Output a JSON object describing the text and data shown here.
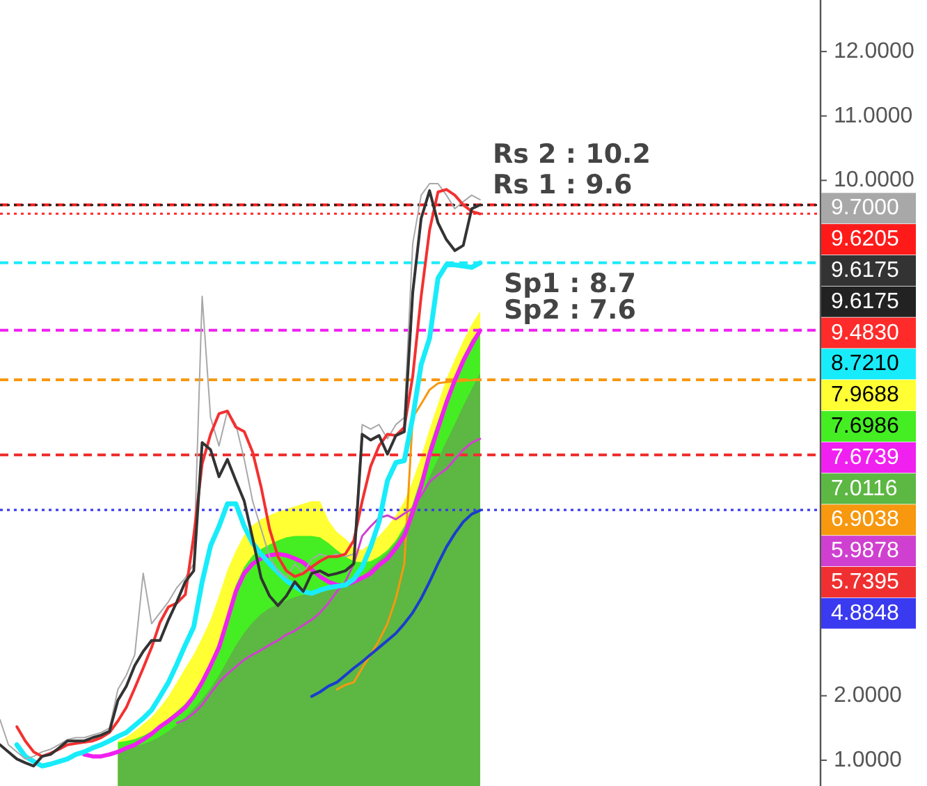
{
  "chart_data": {
    "type": "line",
    "tick_labels": "y",
    "legend": "right",
    "categories": [
      null,
      null,
      null,
      null,
      null,
      null,
      null,
      null,
      null,
      null,
      null,
      null,
      null,
      null,
      null,
      null,
      null,
      null,
      null,
      null,
      null,
      null,
      null,
      null,
      null,
      null,
      null,
      null,
      null,
      null,
      null,
      null,
      null,
      null,
      null,
      null,
      null,
      null,
      null,
      null,
      null,
      null,
      null,
      null,
      null,
      null,
      null,
      null,
      null,
      null,
      null,
      null,
      null,
      null,
      null,
      null,
      null,
      null,
      null,
      null,
      null,
      null,
      null,
      null,
      null,
      null,
      null,
      null,
      null,
      null,
      null,
      null,
      null,
      null,
      null,
      null,
      null,
      null,
      null,
      null,
      null,
      null,
      null,
      null,
      null,
      null,
      null,
      null,
      null,
      null,
      null,
      null,
      null,
      null,
      null,
      null,
      null,
      null
    ],
    "ylim": [
      0.6,
      12.8
    ],
    "yticks": [
      {
        "value": 1,
        "label": "1.0000"
      },
      {
        "value": 2,
        "label": "2.0000"
      },
      {
        "value": 10,
        "label": "10.0000"
      },
      {
        "value": 11,
        "label": "11.0000"
      },
      {
        "value": 12,
        "label": "12.0000"
      }
    ],
    "annotations": [
      "Rs 2 : 10.2",
      "Rs 1 : 9.6",
      "Sp1 : 8.7",
      "Sp2 : 7.6"
    ],
    "ref_lines": [
      {
        "axis": "y",
        "value": 9.6205,
        "label": "9.6205",
        "color": "#ff1a1a",
        "line_style": "dashed"
      },
      {
        "axis": "y",
        "value": 9.6175,
        "label": "9.6175",
        "color": "#222222",
        "line_style": "dotted"
      },
      {
        "axis": "y",
        "value": 9.483,
        "label": "9.4830",
        "color": "#ff2a2a",
        "line_style": "dotted"
      },
      {
        "axis": "y",
        "value": 8.721,
        "label": "8.7210",
        "color": "#18ecfa",
        "line_style": "dashed"
      },
      {
        "axis": "y",
        "value": 7.6739,
        "label": "7.6739",
        "color": "#f020f0",
        "line_style": "dashed"
      },
      {
        "axis": "y",
        "value": 6.9038,
        "label": "6.9038",
        "color": "#f7980f",
        "line_style": "dashed"
      },
      {
        "axis": "y",
        "value": 5.7395,
        "label": "5.7395",
        "color": "#f03030",
        "line_style": "dashed"
      },
      {
        "axis": "y",
        "value": 4.8848,
        "label": "4.8848",
        "color": "#3a3af0",
        "line_style": "dotted"
      }
    ],
    "series": [
      {
        "type": "area",
        "name": "7.9688",
        "color": "#ffff33",
        "values": [
          null,
          null,
          null,
          null,
          null,
          null,
          null,
          null,
          null,
          null,
          null,
          null,
          null,
          null,
          1.3,
          1.36,
          1.45,
          1.56,
          1.67,
          1.82,
          1.99,
          2.21,
          2.43,
          2.64,
          2.9,
          3.18,
          3.55,
          3.95,
          4.25,
          4.5,
          4.65,
          4.74,
          4.8,
          4.86,
          4.9,
          4.94,
          4.98,
          5.02,
          5.02,
          4.72,
          4.54,
          4.44,
          4.3,
          4.26,
          4.37,
          4.48,
          4.63,
          4.8,
          5.02,
          5.34,
          5.71,
          6.14,
          6.53,
          6.92,
          7.22,
          7.51,
          7.76,
          7.97,
          null,
          null,
          null,
          null,
          null,
          null,
          null,
          null,
          null,
          null,
          null,
          null,
          null,
          null,
          null,
          null,
          null,
          null,
          null,
          null,
          null,
          null,
          null,
          null,
          null,
          null,
          null,
          null,
          null,
          null,
          null,
          null,
          null,
          null,
          null,
          null,
          null,
          null,
          null,
          null
        ]
      },
      {
        "type": "area",
        "name": "7.6986",
        "color": "#44ee22",
        "values": [
          null,
          null,
          null,
          null,
          null,
          null,
          null,
          null,
          null,
          null,
          null,
          null,
          null,
          null,
          1.28,
          1.3,
          1.33,
          1.38,
          1.45,
          1.55,
          1.65,
          1.76,
          1.88,
          2.03,
          2.25,
          2.52,
          2.85,
          3.28,
          3.72,
          4.0,
          4.18,
          4.28,
          4.35,
          4.41,
          4.46,
          4.48,
          4.48,
          4.48,
          4.46,
          4.37,
          4.26,
          4.16,
          4.09,
          4.07,
          4.09,
          4.16,
          4.26,
          4.41,
          4.63,
          4.98,
          5.39,
          5.88,
          6.27,
          6.64,
          6.96,
          7.27,
          7.53,
          7.7,
          null,
          null,
          null,
          null,
          null,
          null,
          null,
          null,
          null,
          null,
          null,
          null,
          null,
          null,
          null,
          null,
          null,
          null,
          null,
          null,
          null,
          null,
          null,
          null,
          null,
          null,
          null,
          null,
          null,
          null,
          null,
          null,
          null,
          null,
          null,
          null,
          null,
          null,
          null,
          null
        ]
      },
      {
        "type": "area",
        "name": "7.0116",
        "color": "#5db743",
        "values": [
          null,
          null,
          null,
          null,
          null,
          null,
          null,
          null,
          null,
          null,
          null,
          null,
          null,
          null,
          1.15,
          1.18,
          1.21,
          1.25,
          1.3,
          1.37,
          1.45,
          1.55,
          1.67,
          1.8,
          1.95,
          2.12,
          2.32,
          2.55,
          2.78,
          2.98,
          3.14,
          3.27,
          3.36,
          3.42,
          3.48,
          3.53,
          3.57,
          3.59,
          3.62,
          3.64,
          3.66,
          3.7,
          3.77,
          3.85,
          3.98,
          4.1,
          4.22,
          4.38,
          4.58,
          4.85,
          5.12,
          5.4,
          5.68,
          5.95,
          6.22,
          6.5,
          6.76,
          7.01,
          null,
          null,
          null,
          null,
          null,
          null,
          null,
          null,
          null,
          null,
          null,
          null,
          null,
          null,
          null,
          null,
          null,
          null,
          null,
          null,
          null,
          null,
          null,
          null,
          null,
          null,
          null,
          null,
          null,
          null,
          null,
          null,
          null,
          null,
          null,
          null,
          null,
          null,
          null,
          null
        ]
      },
      {
        "color": "#f7980f",
        "values": [
          null,
          null,
          null,
          null,
          null,
          null,
          null,
          null,
          null,
          null,
          null,
          null,
          null,
          null,
          null,
          null,
          null,
          null,
          null,
          null,
          null,
          null,
          null,
          null,
          null,
          null,
          null,
          null,
          null,
          null,
          null,
          null,
          null,
          null,
          null,
          null,
          null,
          null,
          null,
          null,
          2.1,
          2.17,
          2.21,
          2.43,
          2.64,
          2.86,
          3.12,
          3.51,
          4.05,
          6.32,
          6.53,
          6.75,
          6.85,
          6.87,
          6.88,
          6.89,
          6.9,
          6.9,
          null,
          null,
          null,
          null,
          null,
          null,
          null,
          null,
          null,
          null,
          null,
          null,
          null,
          null,
          null,
          null,
          null,
          null,
          null,
          null,
          null,
          null,
          null,
          null,
          null,
          null,
          null,
          null,
          null,
          null,
          null,
          null,
          null,
          null,
          null,
          null,
          null,
          null,
          null,
          null
        ]
      },
      {
        "color": "#1a3cd0",
        "values": [
          null,
          null,
          null,
          null,
          null,
          null,
          null,
          null,
          null,
          null,
          null,
          null,
          null,
          null,
          null,
          null,
          null,
          null,
          null,
          null,
          null,
          null,
          null,
          null,
          null,
          null,
          null,
          null,
          null,
          null,
          null,
          null,
          null,
          null,
          null,
          null,
          null,
          1.99,
          2.06,
          2.15,
          2.21,
          2.32,
          2.43,
          2.53,
          2.64,
          2.75,
          2.86,
          2.97,
          3.12,
          3.29,
          3.51,
          3.77,
          4.05,
          4.31,
          4.52,
          4.7,
          4.82,
          4.88,
          null,
          null,
          null,
          null,
          null,
          null,
          null,
          null,
          null,
          null,
          null,
          null,
          null,
          null,
          null,
          null,
          null,
          null,
          null,
          null,
          null,
          null,
          null,
          null,
          null,
          null,
          null,
          null,
          null,
          null,
          null,
          null,
          null,
          null,
          null,
          null,
          null,
          null,
          null,
          null
        ]
      },
      {
        "name": "5.9878",
        "color": "#d040d0",
        "values": [
          null,
          null,
          null,
          null,
          null,
          null,
          null,
          null,
          null,
          null,
          null,
          null,
          null,
          null,
          null,
          null,
          null,
          null,
          null,
          null,
          null,
          1.58,
          1.63,
          1.73,
          1.86,
          2.04,
          2.21,
          2.34,
          2.45,
          2.56,
          2.64,
          2.71,
          2.79,
          2.86,
          2.95,
          3.01,
          3.1,
          3.18,
          3.29,
          3.44,
          3.62,
          3.77,
          4.05,
          4.48,
          4.63,
          4.76,
          4.8,
          4.74,
          4.83,
          4.91,
          5.11,
          5.32,
          5.43,
          5.52,
          5.67,
          5.82,
          5.93,
          5.99,
          null,
          null,
          null,
          null,
          null,
          null,
          null,
          null,
          null,
          null,
          null,
          null,
          null,
          null,
          null,
          null,
          null,
          null,
          null,
          null,
          null,
          null,
          null,
          null,
          null,
          null,
          null,
          null,
          null,
          null,
          null,
          null,
          null,
          null,
          null,
          null,
          null,
          null,
          null,
          null
        ]
      },
      {
        "color": "#f020f0",
        "values": [
          null,
          null,
          null,
          null,
          null,
          null,
          null,
          null,
          null,
          null,
          1.09,
          1.06,
          1.06,
          1.09,
          1.13,
          1.19,
          1.24,
          1.32,
          1.41,
          1.52,
          1.61,
          1.71,
          1.82,
          1.99,
          2.21,
          2.47,
          2.75,
          3.18,
          3.62,
          3.9,
          4.05,
          4.13,
          4.18,
          4.2,
          4.18,
          4.13,
          4.07,
          3.96,
          3.85,
          3.77,
          3.72,
          3.72,
          3.77,
          3.83,
          3.9,
          4.03,
          4.13,
          4.29,
          4.48,
          4.85,
          5.25,
          5.75,
          6.15,
          6.55,
          6.9,
          7.2,
          7.45,
          7.67,
          null,
          null,
          null,
          null,
          null,
          null,
          null,
          null,
          null,
          null,
          null,
          null,
          null,
          null,
          null,
          null,
          null,
          null,
          null,
          null,
          null,
          null,
          null,
          null,
          null,
          null,
          null,
          null,
          null,
          null,
          null,
          null,
          null,
          null,
          null,
          null,
          null,
          null,
          null,
          null
        ]
      },
      {
        "color": "#18ecfa",
        "values": [
          null,
          null,
          1.24,
          1.06,
          0.98,
          0.91,
          0.94,
          0.98,
          1.02,
          1.09,
          1.13,
          1.19,
          1.24,
          1.3,
          1.37,
          1.43,
          1.54,
          1.65,
          1.78,
          1.99,
          2.21,
          2.49,
          2.79,
          3.07,
          3.77,
          4.33,
          4.63,
          4.98,
          4.98,
          4.63,
          4.37,
          4.2,
          4.05,
          3.92,
          3.79,
          3.7,
          3.62,
          3.59,
          3.64,
          3.68,
          3.7,
          3.72,
          3.81,
          4.0,
          4.31,
          4.7,
          5.34,
          5.62,
          5.65,
          6.32,
          7.14,
          7.55,
          8.48,
          8.69,
          8.69,
          8.67,
          8.65,
          8.72,
          null,
          null,
          null,
          null,
          null,
          null,
          null,
          null,
          null,
          null,
          null,
          null,
          null,
          null,
          null,
          null,
          null,
          null,
          null,
          null,
          null,
          null,
          null,
          null,
          null,
          null,
          null,
          null,
          null,
          null,
          null,
          null,
          null,
          null,
          null,
          null,
          null,
          null,
          null,
          null
        ]
      },
      {
        "name": "9.7000",
        "color": "#a8a8a8",
        "values": [
          1.63,
          1.24,
          1.13,
          1.02,
          1.06,
          1.13,
          1.17,
          1.24,
          1.32,
          1.35,
          1.35,
          1.39,
          1.43,
          1.5,
          2.1,
          2.32,
          2.64,
          3.9,
          3.12,
          3.29,
          3.46,
          3.68,
          3.83,
          4.05,
          8.2,
          6.32,
          5.88,
          6.42,
          6.21,
          5.67,
          5.02,
          4.59,
          4.16,
          3.94,
          3.83,
          4.05,
          3.9,
          4.12,
          4.2,
          4.16,
          4.2,
          4.16,
          4.2,
          6.21,
          6.14,
          6.21,
          5.99,
          6.21,
          6.32,
          9.02,
          9.77,
          9.95,
          9.95,
          9.77,
          9.56,
          9.67,
          9.77,
          9.7,
          null,
          null,
          null,
          null,
          null,
          null,
          null,
          null,
          null,
          null,
          null,
          null,
          null,
          null,
          null,
          null,
          null,
          null,
          null,
          null,
          null,
          null,
          null,
          null,
          null,
          null,
          null,
          null,
          null,
          null,
          null,
          null,
          null,
          null,
          null,
          null,
          null,
          null,
          null,
          null
        ]
      },
      {
        "color": "#f43030",
        "values": [
          null,
          null,
          1.52,
          1.3,
          1.13,
          1.06,
          1.11,
          1.17,
          1.24,
          1.26,
          1.28,
          1.3,
          1.35,
          1.43,
          1.61,
          1.82,
          2.12,
          2.43,
          2.75,
          3.14,
          3.38,
          3.44,
          3.57,
          4.48,
          5.6,
          6.06,
          6.38,
          6.42,
          6.17,
          6.1,
          5.78,
          5.24,
          4.59,
          4.16,
          3.94,
          3.85,
          3.9,
          4.0,
          4.09,
          4.16,
          4.16,
          4.2,
          4.41,
          5.02,
          5.56,
          5.88,
          6.06,
          6.04,
          6.17,
          6.96,
          8.2,
          9.23,
          9.82,
          9.86,
          9.77,
          9.62,
          9.52,
          9.48,
          null,
          null,
          null,
          null,
          null,
          null,
          null,
          null,
          null,
          null,
          null,
          null,
          null,
          null,
          null,
          null,
          null,
          null,
          null,
          null,
          null,
          null,
          null,
          null,
          null,
          null,
          null,
          null,
          null,
          null,
          null,
          null,
          null,
          null,
          null,
          null,
          null,
          null,
          null,
          null
        ]
      },
      {
        "name": "9.6175",
        "color": "#333333",
        "values": [
          1.24,
          1.13,
          1.02,
          0.96,
          0.91,
          1.06,
          1.09,
          1.19,
          1.3,
          1.3,
          1.3,
          1.35,
          1.39,
          1.45,
          1.93,
          2.15,
          2.47,
          2.69,
          2.86,
          2.86,
          3.18,
          3.46,
          3.77,
          3.94,
          5.93,
          5.82,
          5.4,
          5.67,
          5.34,
          5.02,
          4.44,
          3.83,
          3.55,
          3.4,
          3.55,
          3.77,
          3.62,
          3.9,
          3.94,
          3.87,
          3.9,
          3.94,
          4.05,
          6.06,
          5.97,
          6.04,
          5.75,
          6.04,
          6.1,
          8.26,
          9.41,
          9.84,
          9.34,
          9.08,
          8.91,
          8.99,
          9.56,
          9.62,
          null,
          null,
          null,
          null,
          null,
          null,
          null,
          null,
          null,
          null,
          null,
          null,
          null,
          null,
          null,
          null,
          null,
          null,
          null,
          null,
          null,
          null,
          null,
          null,
          null,
          null,
          null,
          null,
          null,
          null,
          null,
          null,
          null,
          null,
          null,
          null,
          null,
          null,
          null,
          null
        ]
      }
    ]
  }
}
